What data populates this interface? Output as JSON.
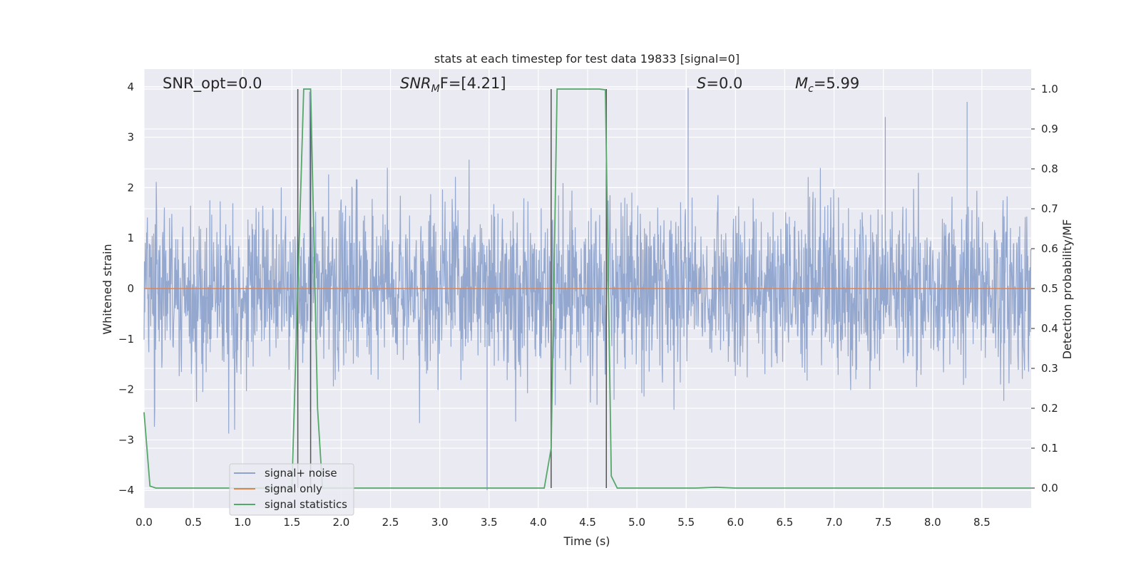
{
  "chart_data": {
    "type": "line",
    "title": "stats at each timestep for test data 19833 [signal=0]",
    "xlabel": "Time (s)",
    "ylabel_left": "Whitened strain",
    "ylabel_right": "Detection probability/MF",
    "xlim": [
      0.0,
      9.0
    ],
    "ylim_left": [
      -4.35,
      4.35
    ],
    "ylim_right": [
      -0.05,
      1.05
    ],
    "x_ticks": [
      "0.0",
      "0.5",
      "1.0",
      "1.5",
      "2.0",
      "2.5",
      "3.0",
      "3.5",
      "4.0",
      "4.5",
      "5.0",
      "5.5",
      "6.0",
      "6.5",
      "7.0",
      "7.5",
      "8.0",
      "8.5"
    ],
    "y_ticks_left": [
      "4",
      "3",
      "2",
      "1",
      "0",
      "−1",
      "−2",
      "−3",
      "−4"
    ],
    "y_ticks_right": [
      "1.0",
      "0.9",
      "0.8",
      "0.7",
      "0.6",
      "0.5",
      "0.4",
      "0.3",
      "0.2",
      "0.1",
      "0.0"
    ],
    "grid": true,
    "legend_position": "lower-left",
    "annotations": {
      "snr_opt": "SNR_opt=0.0",
      "snr_mf_base": "SNR",
      "snr_mf_sub": "M",
      "snr_mf_rest": "F=[4.21]",
      "s_var": "S",
      "s_rest": "=0.0",
      "mc_var": "M",
      "mc_sub": "c",
      "mc_rest": "=5.99"
    },
    "series": [
      {
        "name": "signal+ noise",
        "color": "#8fa4cc",
        "description_values": "whitened noise, approx. ±1.5 band with spikes up to ±3.5",
        "envelope_peak": 3.98,
        "envelope_trough": -4.0
      },
      {
        "name": "signal only",
        "color": "#dd8452",
        "values_constant": 0.0
      },
      {
        "name": "signal statistics",
        "color": "#55a868",
        "x": [
          0.0,
          0.06,
          0.12,
          1.5,
          1.56,
          1.62,
          1.69,
          1.76,
          1.81,
          4.06,
          4.13,
          4.19,
          4.62,
          4.68,
          4.74,
          4.8,
          5.6,
          5.8,
          6.0,
          9.0
        ],
        "y": [
          0.19,
          0.005,
          0.0,
          0.0,
          0.5,
          1.0,
          1.0,
          0.2,
          0.0,
          0.0,
          0.1,
          1.0,
          1.0,
          0.998,
          0.03,
          0.0,
          0.0,
          0.002,
          0.0,
          0.0
        ]
      }
    ],
    "vertical_markers": [
      1.56,
      1.69,
      4.13,
      4.69
    ],
    "legend": [
      "signal+ noise",
      "signal only",
      "signal statistics"
    ]
  },
  "colors": {
    "plot_bg": "#eaeaf2",
    "grid": "#ffffff",
    "noise": "#8fa4cc",
    "signal": "#dd8452",
    "stats": "#55a868",
    "marker": "#555555"
  }
}
